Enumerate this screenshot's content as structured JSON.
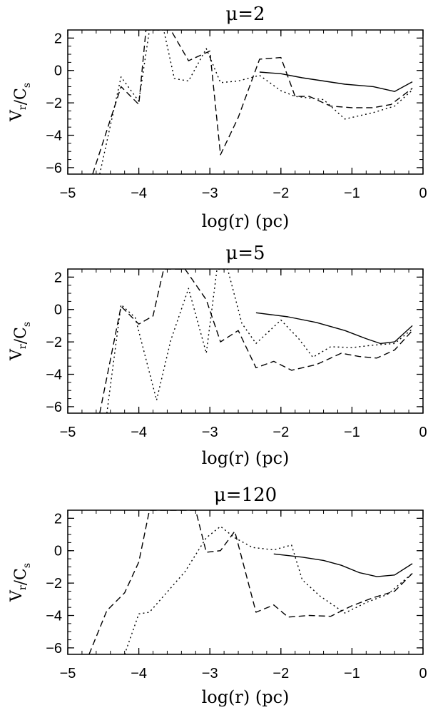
{
  "chart_data": [
    {
      "type": "line",
      "title": "μ=2",
      "xlabel": "log(r) (pc)",
      "ylabel": "V_r/C_s",
      "xlim": [
        -5,
        0
      ],
      "ylim": [
        -6.4,
        2.5
      ],
      "xticks": [
        -5,
        -4,
        -3,
        -2,
        -1,
        0
      ],
      "yticks": [
        -6,
        -4,
        -2,
        0,
        2
      ],
      "series": [
        {
          "style": "solid",
          "x": [
            -2.3,
            -2.0,
            -1.7,
            -1.4,
            -1.1,
            -0.7,
            -0.4,
            -0.15
          ],
          "y": [
            -0.1,
            -0.2,
            -0.45,
            -0.65,
            -0.85,
            -1.0,
            -1.3,
            -0.7
          ]
        },
        {
          "style": "dashed",
          "x": [
            -4.65,
            -4.25,
            -4.0,
            -3.9,
            -3.75,
            -3.55,
            -3.3,
            -3.0,
            -2.85,
            -2.6,
            -2.3,
            -2.0,
            -1.8,
            -1.6,
            -1.3,
            -1.0,
            -0.7,
            -0.45,
            -0.15
          ],
          "y": [
            -6.4,
            -1.0,
            -2.1,
            2.5,
            2.5,
            2.5,
            0.6,
            1.2,
            -5.2,
            -2.9,
            0.7,
            0.8,
            -1.6,
            -1.6,
            -2.2,
            -2.3,
            -2.3,
            -2.1,
            -1.1
          ]
        },
        {
          "style": "dotted",
          "x": [
            -4.55,
            -4.25,
            -4.0,
            -3.85,
            -3.65,
            -3.5,
            -3.3,
            -3.05,
            -2.85,
            -2.6,
            -2.3,
            -2.0,
            -1.8,
            -1.4,
            -1.1,
            -0.7,
            -0.4,
            -0.15
          ],
          "y": [
            -6.4,
            -0.4,
            -1.9,
            2.5,
            2.5,
            -0.5,
            -0.65,
            1.35,
            -0.75,
            -0.65,
            -0.3,
            -1.25,
            -1.6,
            -1.8,
            -3.0,
            -2.6,
            -2.2,
            -1.2
          ]
        }
      ]
    },
    {
      "type": "line",
      "title": "μ=5",
      "xlabel": "log(r) (pc)",
      "ylabel": "V_r/C_s",
      "xlim": [
        -5,
        0
      ],
      "ylim": [
        -6.4,
        2.5
      ],
      "xticks": [
        -5,
        -4,
        -3,
        -2,
        -1,
        0
      ],
      "yticks": [
        -6,
        -4,
        -2,
        0,
        2
      ],
      "series": [
        {
          "style": "solid",
          "x": [
            -2.35,
            -1.9,
            -1.5,
            -1.1,
            -0.8,
            -0.6,
            -0.4,
            -0.15
          ],
          "y": [
            -0.2,
            -0.45,
            -0.8,
            -1.3,
            -1.8,
            -2.1,
            -2.0,
            -1.0
          ]
        },
        {
          "style": "dashed",
          "x": [
            -4.55,
            -4.25,
            -4.0,
            -3.8,
            -3.65,
            -3.35,
            -3.05,
            -2.85,
            -2.6,
            -2.35,
            -2.1,
            -1.85,
            -1.5,
            -1.15,
            -0.9,
            -0.65,
            -0.4,
            -0.15
          ],
          "y": [
            -6.4,
            0.2,
            -0.9,
            -0.4,
            2.5,
            2.5,
            0.6,
            -2.0,
            -1.3,
            -3.6,
            -3.2,
            -3.75,
            -3.4,
            -2.7,
            -2.9,
            -3.0,
            -2.5,
            -1.3
          ]
        },
        {
          "style": "dotted",
          "x": [
            -4.45,
            -4.25,
            -4.05,
            -3.75,
            -3.55,
            -3.3,
            -3.05,
            -2.9,
            -2.75,
            -2.55,
            -2.35,
            -2.0,
            -1.75,
            -1.55,
            -1.3,
            -1.0,
            -0.7,
            -0.4,
            -0.15
          ],
          "y": [
            -6.4,
            0.3,
            -0.5,
            -5.6,
            -1.9,
            1.3,
            -2.7,
            2.5,
            2.5,
            -0.85,
            -2.1,
            -0.65,
            -1.8,
            -2.95,
            -2.3,
            -2.35,
            -2.2,
            -2.1,
            -1.2
          ]
        }
      ]
    },
    {
      "type": "line",
      "title": "μ=120",
      "xlabel": "log(r) (pc)",
      "ylabel": "V_r/C_s",
      "xlim": [
        -5,
        0
      ],
      "ylim": [
        -6.4,
        2.5
      ],
      "xticks": [
        -5,
        -4,
        -3,
        -2,
        -1,
        0
      ],
      "yticks": [
        -6,
        -4,
        -2,
        0,
        2
      ],
      "series": [
        {
          "style": "solid",
          "x": [
            -2.1,
            -1.7,
            -1.4,
            -1.15,
            -0.9,
            -0.65,
            -0.4,
            -0.15
          ],
          "y": [
            -0.2,
            -0.4,
            -0.6,
            -0.9,
            -1.35,
            -1.6,
            -1.5,
            -0.8
          ]
        },
        {
          "style": "dashed",
          "x": [
            -4.7,
            -4.45,
            -4.2,
            -4.0,
            -3.85,
            -3.2,
            -3.05,
            -2.85,
            -2.65,
            -2.35,
            -2.1,
            -1.9,
            -1.6,
            -1.3,
            -1.0,
            -0.7,
            -0.4,
            -0.15
          ],
          "y": [
            -6.4,
            -3.7,
            -2.6,
            -0.7,
            2.5,
            2.5,
            -0.1,
            0.0,
            1.2,
            -3.8,
            -3.35,
            -4.1,
            -4.0,
            -4.05,
            -3.4,
            -2.9,
            -2.5,
            -1.4
          ]
        },
        {
          "style": "dotted",
          "x": [
            -4.2,
            -4.0,
            -3.85,
            -3.55,
            -3.35,
            -3.05,
            -2.85,
            -2.65,
            -2.4,
            -2.1,
            -1.85,
            -1.7,
            -1.45,
            -1.1,
            -0.8,
            -0.5,
            -0.15
          ],
          "y": [
            -6.4,
            -3.9,
            -3.8,
            -2.3,
            -1.3,
            0.8,
            1.5,
            0.8,
            0.2,
            0.05,
            0.35,
            -1.8,
            -2.8,
            -3.85,
            -3.2,
            -2.7,
            -1.4
          ]
        }
      ]
    }
  ]
}
